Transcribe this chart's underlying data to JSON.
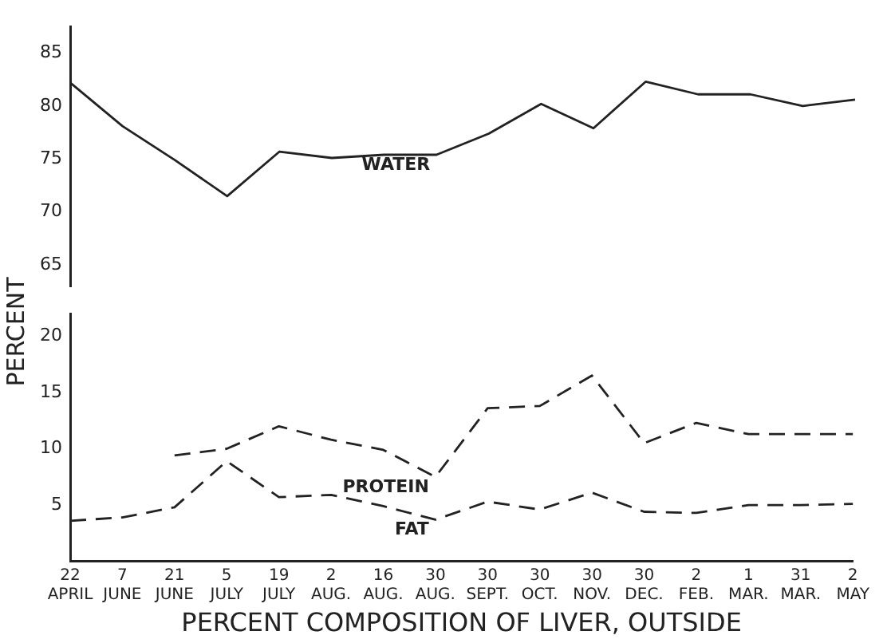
{
  "chart_data": [
    {
      "type": "line",
      "ylabel": "PERCENT",
      "series": [
        {
          "name": "WATER",
          "color": "#222222",
          "line_style": "solid",
          "values": [
            82.2,
            78.1,
            74.9,
            71.5,
            75.7,
            75.1,
            75.4,
            75.4,
            77.4,
            80.2,
            77.9,
            82.3,
            81.1,
            81.1,
            80.0,
            80.6
          ]
        }
      ],
      "ylim": [
        63,
        87.5
      ],
      "yticks": [
        65,
        70,
        75,
        80,
        85
      ],
      "grid": false,
      "legend": false,
      "marker": "none",
      "tick_labels": "y"
    },
    {
      "type": "line",
      "xlabel": "PERCENT COMPOSITION OF LIVER, OUTSIDE",
      "categories": [
        "22\nAPRIL",
        "7\nJUNE",
        "21\nJUNE",
        "5\nJULY",
        "19\nJULY",
        "2\nAUG.",
        "16\nAUG.",
        "30\nAUG.",
        "30\nSEPT.",
        "30\nOCT.",
        "30\nNOV.",
        "30\nDEC.",
        "2\nFEB.",
        "1\nMAR.",
        "31\nMAR.",
        "2\nMAY"
      ],
      "series": [
        {
          "name": "PROTEIN",
          "color": "#222222",
          "line_style": "dashed",
          "values": [
            null,
            null,
            9.4,
            10.0,
            12.0,
            10.8,
            9.9,
            7.5,
            13.6,
            13.8,
            16.5,
            10.5,
            12.3,
            11.3,
            11.3,
            11.3
          ]
        },
        {
          "name": "FAT",
          "color": "#222222",
          "line_style": "dashed",
          "values": [
            3.6,
            3.9,
            4.8,
            8.9,
            5.7,
            5.9,
            4.9,
            3.7,
            5.3,
            4.6,
            6.1,
            4.4,
            4.3,
            5.0,
            5.0,
            5.1
          ]
        }
      ],
      "ylim": [
        0,
        22
      ],
      "yticks": [
        5,
        10,
        15,
        20
      ],
      "grid": false,
      "legend": false,
      "marker": "none"
    }
  ]
}
